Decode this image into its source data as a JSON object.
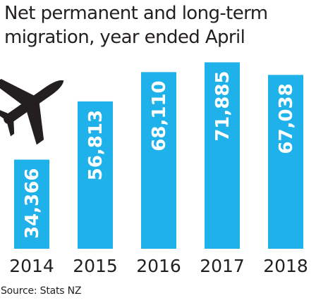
{
  "title_lines": [
    "Net permanent and long-term",
    "migration, year ended April"
  ],
  "source": "Source: Stats NZ",
  "colors": {
    "bar": "#1fb1e9",
    "bar_label": "#ffffff",
    "text": "#231f20",
    "plane": "#231f20"
  },
  "icons": {
    "plane": "airplane-icon"
  },
  "chart_data": {
    "type": "bar",
    "title": "Net permanent and long-term migration, year ended April",
    "xlabel": "",
    "ylabel": "",
    "categories": [
      "2014",
      "2015",
      "2016",
      "2017",
      "2018"
    ],
    "values": [
      34366,
      56813,
      68110,
      71885,
      67038
    ],
    "value_labels": [
      "34,366",
      "56,813",
      "68,110",
      "71,885",
      "67,038"
    ],
    "ylim": [
      0,
      75000
    ],
    "grid": false,
    "legend": "none",
    "data_labels": "inside-bar-rotated"
  }
}
